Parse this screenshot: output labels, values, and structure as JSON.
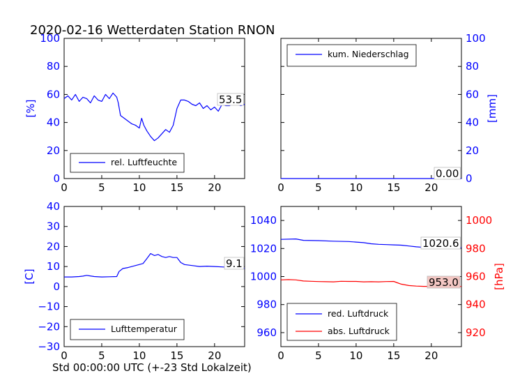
{
  "figure": {
    "title": "2020-02-16 Wetterdaten Station RNON",
    "xlabel": "Std 00:00:00 UTC (+-23 Std Lokalzeit)"
  },
  "colors": {
    "blue": "#0000ff",
    "red": "#ff0000",
    "ann_bg_red": "#f4c7c3"
  },
  "chart_data": [
    {
      "type": "line",
      "title": "",
      "xlabel": "",
      "ylabel": "[%]",
      "xlim": [
        0,
        24
      ],
      "ylim": [
        0,
        100
      ],
      "xticks": [
        "0",
        "5",
        "10",
        "15",
        "20"
      ],
      "yticks": [
        "0",
        "20",
        "40",
        "60",
        "80",
        "100"
      ],
      "legend": {
        "position": "lower-left",
        "entries": [
          "rel. Luftfeuchte"
        ]
      },
      "annotation": "53.5",
      "series": [
        {
          "name": "rel. Luftfeuchte",
          "color": "#0000ff",
          "x": [
            0,
            0.5,
            1,
            1.5,
            2,
            2.5,
            3,
            3.5,
            4,
            4.5,
            5,
            5.5,
            6,
            6.5,
            7,
            7.2,
            7.5,
            8,
            8.5,
            9,
            9.5,
            10,
            10.3,
            10.6,
            11,
            11.5,
            12,
            12.5,
            13,
            13.5,
            14,
            14.5,
            15,
            15.5,
            16,
            16.5,
            17,
            17.5,
            18,
            18.5,
            19,
            19.5,
            20,
            20.5,
            21,
            21.5,
            22,
            22.5,
            23,
            23.5,
            24
          ],
          "y": [
            57,
            59,
            56,
            60,
            55,
            58,
            57,
            54,
            59,
            56,
            55,
            60,
            57,
            61,
            58,
            54,
            45,
            43,
            41,
            39,
            38,
            36,
            43,
            38,
            34,
            30,
            27,
            29,
            32,
            35,
            33,
            38,
            50,
            56,
            56,
            55,
            53,
            52,
            54,
            50,
            52,
            49,
            51,
            48,
            53,
            52,
            52,
            54,
            53,
            52,
            53
          ]
        }
      ]
    },
    {
      "type": "line",
      "title": "",
      "xlabel": "",
      "ylabel": "[mm]",
      "xlim": [
        0,
        24
      ],
      "ylim": [
        0,
        100
      ],
      "xticks": [
        "0",
        "5",
        "10",
        "15",
        "20"
      ],
      "yticks": [
        "0",
        "20",
        "40",
        "60",
        "80",
        "100"
      ],
      "legend": {
        "position": "upper-left",
        "entries": [
          "kum. Niederschlag"
        ]
      },
      "annotation": "0.00",
      "series": [
        {
          "name": "kum. Niederschlag",
          "color": "#0000ff",
          "x": [
            0,
            24
          ],
          "y": [
            0,
            0
          ]
        }
      ]
    },
    {
      "type": "line",
      "title": "",
      "xlabel": "",
      "ylabel": "[C]",
      "xlim": [
        0,
        24
      ],
      "ylim": [
        -30,
        40
      ],
      "xticks": [
        "0",
        "5",
        "10",
        "15",
        "20"
      ],
      "yticks": [
        "−30",
        "−20",
        "−10",
        "0",
        "10",
        "20",
        "30",
        "40"
      ],
      "legend": {
        "position": "lower-left",
        "entries": [
          "Lufttemperatur"
        ]
      },
      "annotation": "9.1",
      "series": [
        {
          "name": "Lufttemperatur",
          "color": "#0000ff",
          "x": [
            0,
            1,
            2,
            2.5,
            3,
            4,
            5,
            6,
            7,
            7.3,
            7.8,
            8.5,
            9.5,
            10.5,
            11,
            11.5,
            12,
            12.5,
            13,
            13.5,
            14,
            14.5,
            15,
            15.5,
            16,
            17,
            18,
            19,
            20,
            21,
            22,
            23,
            24
          ],
          "y": [
            4.8,
            4.8,
            5,
            5.2,
            5.6,
            5,
            4.8,
            4.9,
            5,
            7.5,
            9,
            9.5,
            10.5,
            11.5,
            14,
            16.5,
            15.5,
            16,
            15,
            14.5,
            15,
            14.5,
            14.5,
            12,
            11,
            10.5,
            10,
            10.2,
            10,
            9.8,
            9.6,
            9.3,
            9.1
          ]
        }
      ]
    },
    {
      "type": "line",
      "title": "",
      "xlabel": "",
      "ylabel": "[hPa]",
      "xlim": [
        0,
        24
      ],
      "ylim": [
        950,
        1050
      ],
      "y2lim": [
        910,
        1010
      ],
      "xticks": [
        "0",
        "5",
        "10",
        "15",
        "20"
      ],
      "yticks": [
        "960",
        "980",
        "1000",
        "1020",
        "1040"
      ],
      "y2ticks": [
        "920",
        "940",
        "960",
        "980",
        "1000"
      ],
      "legend": {
        "position": "lower-left",
        "entries": [
          "red. Luftdruck",
          "abs. Luftdruck"
        ]
      },
      "annotations": [
        "1020.6",
        "953.0"
      ],
      "series": [
        {
          "name": "red. Luftdruck",
          "color": "#0000ff",
          "axis": "left",
          "x": [
            0,
            2,
            3,
            5,
            7,
            9,
            10,
            11,
            12,
            13,
            14,
            15,
            16,
            17,
            18,
            19,
            20,
            21,
            22,
            23,
            24
          ],
          "y": [
            1026.5,
            1026.8,
            1025.8,
            1025.6,
            1025.2,
            1025,
            1024.6,
            1024.2,
            1023.4,
            1023,
            1022.8,
            1022.6,
            1022.4,
            1021.8,
            1021.2,
            1020.8,
            1020.6,
            1020.5,
            1020.6,
            1020.6,
            1020.6
          ]
        },
        {
          "name": "abs. Luftdruck",
          "color": "#ff0000",
          "axis": "right",
          "x": [
            0,
            1,
            2,
            3,
            4,
            5,
            6,
            7,
            8,
            9,
            10,
            11,
            12,
            13,
            14,
            15,
            15.5,
            16,
            17,
            18,
            19,
            20,
            21,
            22,
            23,
            24
          ],
          "y": [
            957.6,
            957.8,
            957.6,
            956.8,
            956.6,
            956.4,
            956.3,
            956.2,
            956.6,
            956.5,
            956.5,
            956.2,
            956.3,
            956.2,
            956.4,
            956.5,
            955.5,
            954.6,
            953.6,
            953.2,
            953,
            953,
            952.8,
            953,
            953,
            953
          ]
        }
      ]
    }
  ]
}
